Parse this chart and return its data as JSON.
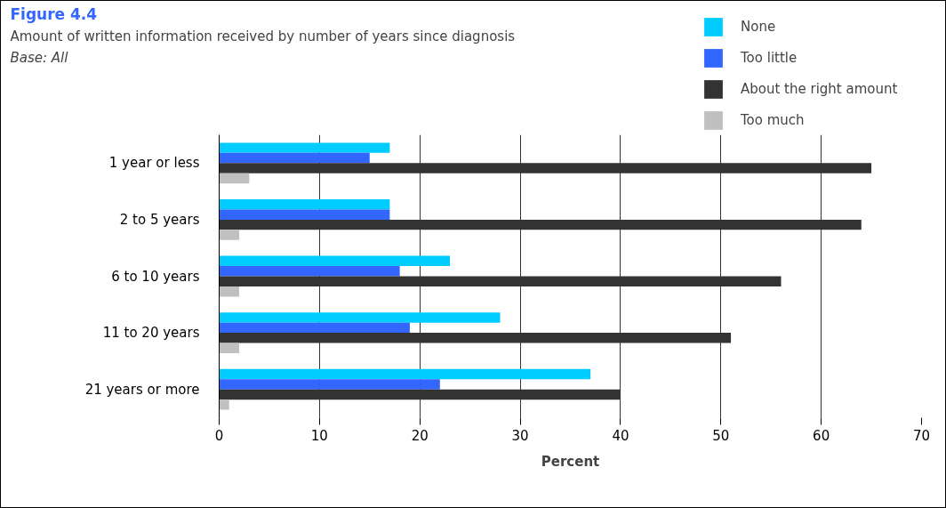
{
  "chart_data": {
    "type": "bar",
    "orientation": "horizontal",
    "title": "Figure 4.4",
    "subtitle": "Amount of written information received by number of years since diagnosis",
    "annotations": [
      "Base: All"
    ],
    "categories": [
      "1 year or less",
      "2 to 5 years",
      "6 to 10 years",
      "11 to 20 years",
      "21 years or more"
    ],
    "series": [
      {
        "name": "None",
        "color": "#00ccff",
        "values": [
          17,
          17,
          23,
          28,
          37
        ]
      },
      {
        "name": "Too little",
        "color": "#3366ff",
        "values": [
          15,
          17,
          18,
          19,
          22
        ]
      },
      {
        "name": "About the right amount",
        "color": "#333333",
        "values": [
          65,
          64,
          56,
          51,
          40
        ]
      },
      {
        "name": "Too much",
        "color": "#c0c0c0",
        "values": [
          3,
          2,
          2,
          2,
          1
        ]
      }
    ],
    "xlabel": "Percent",
    "xlim": [
      0,
      70
    ],
    "xticks": [
      0,
      10,
      20,
      30,
      40,
      50,
      60,
      70
    ],
    "grid": "x",
    "legend": "top right"
  }
}
